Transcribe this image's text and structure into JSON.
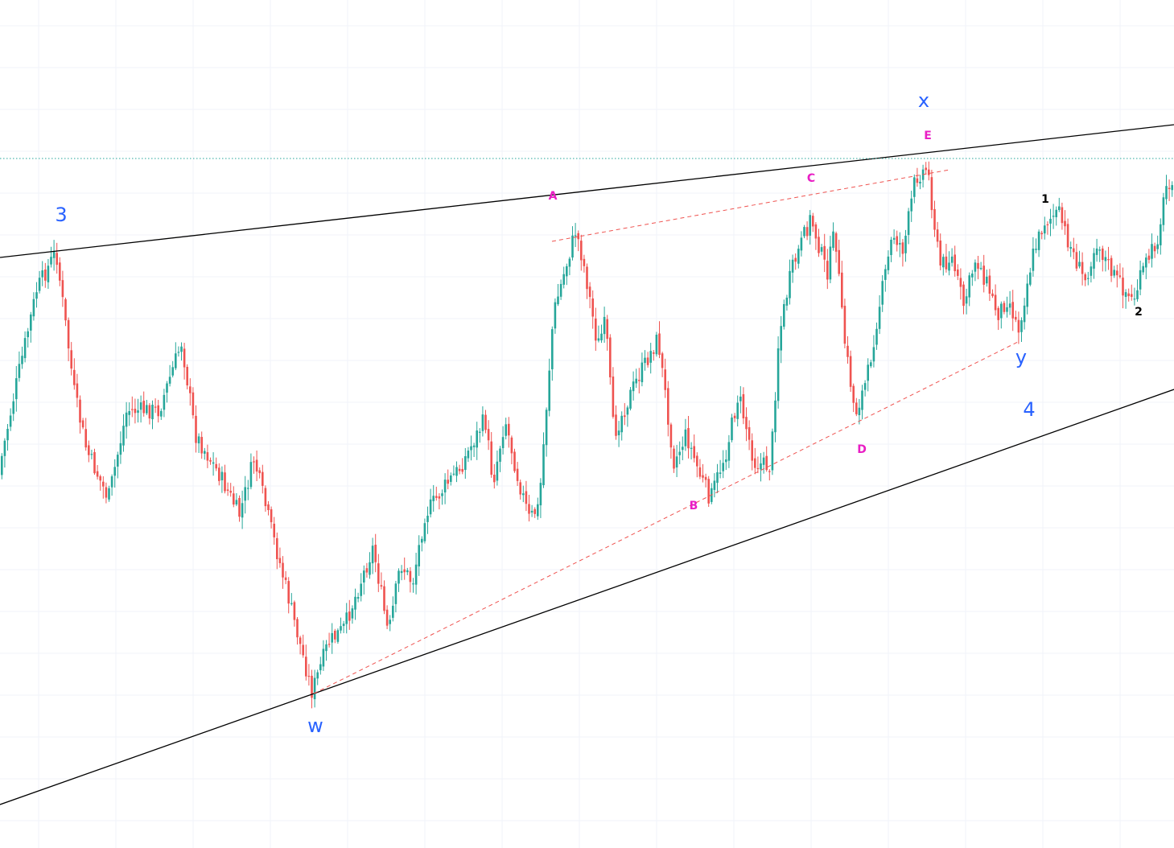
{
  "chart_data": {
    "type": "candlestick",
    "title": "",
    "xlabel": "",
    "ylabel": "",
    "grid": true,
    "legend": "none",
    "ylim": [
      0,
      1054
    ],
    "colors": {
      "up": "#26a69a",
      "down": "#ef5350",
      "trendline": "#000000",
      "channel_dash": "#ef5350",
      "level_dots": "#26a69a",
      "label_blue": "#2962ff",
      "label_magenta": "#e91ec4",
      "label_black": "#000000",
      "grid": "#f0f3fa"
    },
    "swing_path": [
      [
        0,
        590
      ],
      [
        22,
        480
      ],
      [
        48,
        360
      ],
      [
        72,
        312
      ],
      [
        95,
        490
      ],
      [
        110,
        560
      ],
      [
        137,
        620
      ],
      [
        160,
        510
      ],
      [
        200,
        510
      ],
      [
        228,
        425
      ],
      [
        245,
        540
      ],
      [
        275,
        590
      ],
      [
        300,
        640
      ],
      [
        318,
        570
      ],
      [
        335,
        640
      ],
      [
        360,
        740
      ],
      [
        390,
        860
      ],
      [
        410,
        800
      ],
      [
        430,
        780
      ],
      [
        466,
        680
      ],
      [
        485,
        790
      ],
      [
        500,
        700
      ],
      [
        515,
        725
      ],
      [
        530,
        640
      ],
      [
        555,
        605
      ],
      [
        575,
        580
      ],
      [
        605,
        520
      ],
      [
        615,
        600
      ],
      [
        630,
        520
      ],
      [
        645,
        590
      ],
      [
        660,
        645
      ],
      [
        672,
        630
      ],
      [
        690,
        390
      ],
      [
        718,
        285
      ],
      [
        730,
        340
      ],
      [
        745,
        430
      ],
      [
        755,
        400
      ],
      [
        765,
        540
      ],
      [
        790,
        480
      ],
      [
        820,
        420
      ],
      [
        840,
        575
      ],
      [
        855,
        540
      ],
      [
        872,
        590
      ],
      [
        885,
        620
      ],
      [
        905,
        560
      ],
      [
        920,
        490
      ],
      [
        940,
        575
      ],
      [
        960,
        580
      ],
      [
        970,
        420
      ],
      [
        985,
        340
      ],
      [
        1010,
        270
      ],
      [
        1030,
        340
      ],
      [
        1040,
        285
      ],
      [
        1050,
        410
      ],
      [
        1065,
        515
      ],
      [
        1080,
        470
      ],
      [
        1095,
        380
      ],
      [
        1112,
        290
      ],
      [
        1125,
        310
      ],
      [
        1140,
        220
      ],
      [
        1155,
        208
      ],
      [
        1170,
        330
      ],
      [
        1185,
        320
      ],
      [
        1200,
        380
      ],
      [
        1215,
        320
      ],
      [
        1228,
        350
      ],
      [
        1242,
        390
      ],
      [
        1255,
        370
      ],
      [
        1268,
        410
      ],
      [
        1285,
        320
      ],
      [
        1300,
        275
      ],
      [
        1318,
        265
      ],
      [
        1330,
        300
      ],
      [
        1350,
        350
      ],
      [
        1365,
        300
      ],
      [
        1385,
        340
      ],
      [
        1410,
        375
      ],
      [
        1425,
        330
      ],
      [
        1440,
        300
      ],
      [
        1452,
        230
      ],
      [
        1459,
        220
      ]
    ],
    "candle_spacing": 3.6,
    "candle_seed": 7,
    "lines": [
      {
        "name": "upper-trendline",
        "style": "solid",
        "color": "#000000",
        "points": [
          [
            0,
            320
          ],
          [
            1459,
            155
          ]
        ]
      },
      {
        "name": "lower-trendline",
        "style": "solid",
        "color": "#000000",
        "points": [
          [
            0,
            1000
          ],
          [
            1459,
            484
          ]
        ]
      },
      {
        "name": "dashed-upper-line",
        "style": "dashed",
        "color": "#ef5350",
        "points": [
          [
            686,
            300
          ],
          [
            1180,
            211
          ]
        ]
      },
      {
        "name": "dashed-lower-line",
        "style": "dashed",
        "color": "#ef5350",
        "points": [
          [
            390,
            862
          ],
          [
            1265,
            425
          ]
        ]
      },
      {
        "name": "dotted-level-line",
        "style": "dotted",
        "color": "#26a69a",
        "points": [
          [
            0,
            197
          ],
          [
            1459,
            197
          ]
        ]
      }
    ],
    "annotations": [
      {
        "text": "3",
        "x": 76,
        "y": 275,
        "style": "big",
        "color": "#2962ff"
      },
      {
        "text": "w",
        "x": 392,
        "y": 910,
        "style": "big",
        "color": "#2962ff"
      },
      {
        "text": "x",
        "x": 1148,
        "y": 133,
        "style": "big",
        "color": "#2962ff"
      },
      {
        "text": "y",
        "x": 1269,
        "y": 452,
        "style": "big",
        "color": "#2962ff"
      },
      {
        "text": "4",
        "x": 1279,
        "y": 517,
        "style": "big",
        "color": "#2962ff"
      },
      {
        "text": "A",
        "x": 687,
        "y": 248,
        "style": "small",
        "color": "#e91ec4"
      },
      {
        "text": "B",
        "x": 862,
        "y": 633,
        "style": "small",
        "color": "#e91ec4"
      },
      {
        "text": "C",
        "x": 1008,
        "y": 226,
        "style": "small",
        "color": "#e91ec4"
      },
      {
        "text": "D",
        "x": 1071,
        "y": 563,
        "style": "small",
        "color": "#e91ec4"
      },
      {
        "text": "E",
        "x": 1153,
        "y": 173,
        "style": "small",
        "color": "#e91ec4"
      },
      {
        "text": "1",
        "x": 1299,
        "y": 252,
        "style": "small",
        "color": "#000000"
      },
      {
        "text": "2",
        "x": 1415,
        "y": 392,
        "style": "small",
        "color": "#000000"
      }
    ]
  }
}
